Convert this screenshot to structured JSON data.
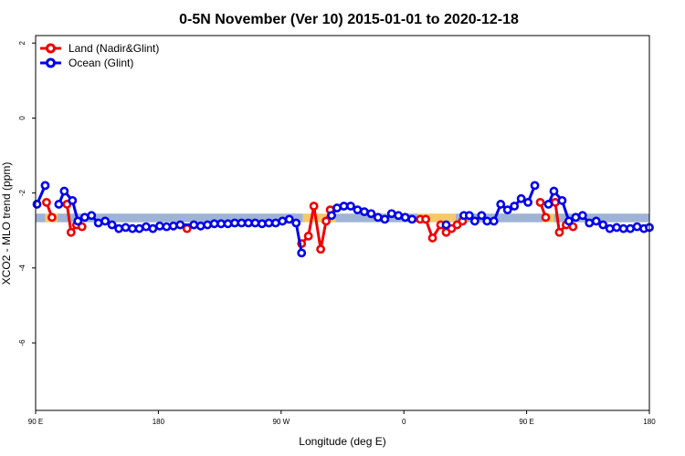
{
  "chart_data": {
    "type": "line",
    "title": "0-5N November (Ver 10)   2015-01-01 to 2020-12-18",
    "xlabel": "Longitude (deg E)",
    "ylabel": "XCO2 - MLO trend (ppm)",
    "xlim": [
      90,
      540
    ],
    "ylim": [
      -7.8,
      2.2
    ],
    "x_ticks": [
      {
        "value": 90,
        "label": "90 E"
      },
      {
        "value": 180,
        "label": "180"
      },
      {
        "value": 270,
        "label": "90 W"
      },
      {
        "value": 360,
        "label": "0"
      },
      {
        "value": 450,
        "label": "90 E"
      },
      {
        "value": 540,
        "label": "180"
      }
    ],
    "y_ticks": [
      {
        "value": 2,
        "label": "2"
      },
      {
        "value": 0,
        "label": "0"
      },
      {
        "value": -2,
        "label": "-2"
      },
      {
        "value": -4,
        "label": "-4"
      },
      {
        "value": -6,
        "label": "-6"
      }
    ],
    "legend_position": "top-left",
    "band_colors": {
      "land": "#f5c86a",
      "ocean": "#9fb4d4"
    },
    "bands": [
      {
        "type": "ocean",
        "x0": 90,
        "x1": 97,
        "y0": -2.78,
        "y1": -2.55
      },
      {
        "type": "land",
        "x0": 97,
        "x1": 106,
        "y0": -2.78,
        "y1": -2.55
      },
      {
        "type": "ocean",
        "x0": 106,
        "x1": 286,
        "y0": -2.78,
        "y1": -2.55
      },
      {
        "type": "land",
        "x0": 286,
        "x1": 310,
        "y0": -2.78,
        "y1": -2.55
      },
      {
        "type": "ocean",
        "x0": 310,
        "x1": 370,
        "y0": -2.78,
        "y1": -2.55
      },
      {
        "type": "land",
        "x0": 370,
        "x1": 398,
        "y0": -2.78,
        "y1": -2.55
      },
      {
        "type": "ocean",
        "x0": 398,
        "x1": 462,
        "y0": -2.78,
        "y1": -2.55
      },
      {
        "type": "land",
        "x0": 462,
        "x1": 470,
        "y0": -2.78,
        "y1": -2.55
      },
      {
        "type": "ocean",
        "x0": 470,
        "x1": 540,
        "y0": -2.78,
        "y1": -2.55
      }
    ],
    "series": [
      {
        "name": "Land (Nadir&Glint)",
        "color": "#ee0000",
        "segments": [
          [
            [
              98,
              -2.25
            ],
            [
              102,
              -2.65
            ]
          ],
          [
            [
              113,
              -2.3
            ],
            [
              116,
              -3.05
            ],
            [
              120,
              -2.85
            ],
            [
              124,
              -2.9
            ]
          ],
          [
            [
              201,
              -2.95
            ]
          ],
          [
            [
              285,
              -3.35
            ],
            [
              290,
              -3.15
            ],
            [
              294,
              -2.35
            ],
            [
              299,
              -3.5
            ],
            [
              303,
              -2.75
            ],
            [
              306,
              -2.45
            ]
          ],
          [
            [
              372,
              -2.7
            ],
            [
              376,
              -2.7
            ],
            [
              381,
              -3.2
            ],
            [
              387,
              -2.85
            ],
            [
              391,
              -3.05
            ],
            [
              395,
              -2.95
            ],
            [
              399,
              -2.85
            ],
            [
              403,
              -2.75
            ]
          ],
          [
            [
              460,
              -2.25
            ],
            [
              464,
              -2.65
            ]
          ],
          [
            [
              471,
              -2.25
            ],
            [
              474,
              -3.05
            ],
            [
              479,
              -2.85
            ],
            [
              484,
              -2.9
            ]
          ]
        ]
      },
      {
        "name": "Ocean (Glint)",
        "color": "#0000ee",
        "segments": [
          [
            [
              91,
              -2.3
            ],
            [
              97,
              -1.8
            ]
          ],
          [
            [
              107,
              -2.3
            ],
            [
              111,
              -1.95
            ],
            [
              117,
              -2.2
            ],
            [
              121,
              -2.75
            ],
            [
              126,
              -2.65
            ],
            [
              131,
              -2.6
            ],
            [
              136,
              -2.8
            ],
            [
              141,
              -2.75
            ],
            [
              146,
              -2.85
            ],
            [
              151,
              -2.95
            ],
            [
              156,
              -2.92
            ],
            [
              161,
              -2.95
            ],
            [
              166,
              -2.95
            ],
            [
              171,
              -2.9
            ],
            [
              176,
              -2.95
            ],
            [
              181,
              -2.88
            ],
            [
              186,
              -2.9
            ],
            [
              191,
              -2.88
            ],
            [
              196,
              -2.85
            ],
            [
              206,
              -2.85
            ],
            [
              211,
              -2.88
            ],
            [
              216,
              -2.85
            ],
            [
              221,
              -2.82
            ],
            [
              226,
              -2.82
            ],
            [
              231,
              -2.82
            ],
            [
              236,
              -2.8
            ],
            [
              241,
              -2.8
            ],
            [
              246,
              -2.8
            ],
            [
              251,
              -2.8
            ],
            [
              256,
              -2.82
            ],
            [
              261,
              -2.8
            ],
            [
              266,
              -2.8
            ],
            [
              271,
              -2.75
            ],
            [
              276,
              -2.7
            ],
            [
              281,
              -2.8
            ],
            [
              285,
              -3.6
            ]
          ],
          [
            [
              307,
              -2.6
            ],
            [
              311,
              -2.4
            ],
            [
              316,
              -2.35
            ],
            [
              321,
              -2.35
            ],
            [
              326,
              -2.45
            ],
            [
              331,
              -2.5
            ],
            [
              336,
              -2.55
            ],
            [
              341,
              -2.65
            ],
            [
              346,
              -2.7
            ],
            [
              351,
              -2.55
            ],
            [
              356,
              -2.6
            ],
            [
              361,
              -2.65
            ],
            [
              366,
              -2.7
            ]
          ],
          [
            [
              391,
              -2.85
            ]
          ],
          [
            [
              404,
              -2.6
            ],
            [
              408,
              -2.6
            ],
            [
              412,
              -2.75
            ],
            [
              417,
              -2.6
            ],
            [
              421,
              -2.75
            ],
            [
              426,
              -2.75
            ],
            [
              431,
              -2.3
            ],
            [
              436,
              -2.45
            ],
            [
              441,
              -2.35
            ],
            [
              446,
              -2.15
            ],
            [
              451,
              -2.25
            ],
            [
              456,
              -1.8
            ]
          ],
          [
            [
              466,
              -2.3
            ],
            [
              470,
              -1.95
            ],
            [
              476,
              -2.2
            ],
            [
              481,
              -2.75
            ],
            [
              486,
              -2.65
            ],
            [
              491,
              -2.6
            ],
            [
              496,
              -2.8
            ],
            [
              501,
              -2.75
            ],
            [
              506,
              -2.85
            ],
            [
              511,
              -2.95
            ],
            [
              516,
              -2.92
            ],
            [
              521,
              -2.95
            ],
            [
              526,
              -2.95
            ],
            [
              531,
              -2.9
            ],
            [
              536,
              -2.95
            ],
            [
              540,
              -2.92
            ]
          ]
        ]
      }
    ]
  }
}
